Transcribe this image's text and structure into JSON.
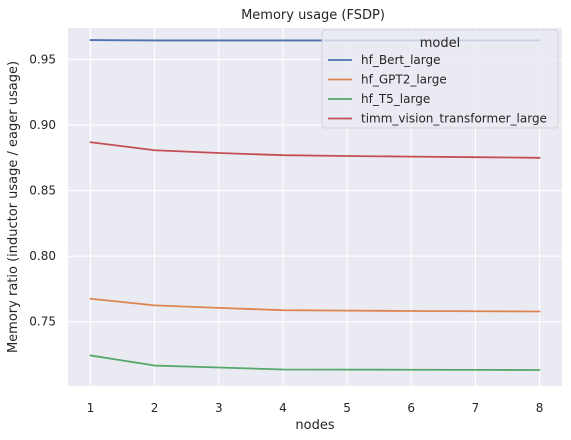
{
  "chart_data": {
    "type": "line",
    "title": "Memory usage (FSDP)",
    "xlabel": "nodes",
    "ylabel": "Memory ratio (inductor usage / eager usage)",
    "x": [
      1,
      2,
      3,
      4,
      5,
      6,
      7,
      8
    ],
    "xticks": [
      "1",
      "2",
      "3",
      "4",
      "5",
      "6",
      "7",
      "8"
    ],
    "yticks": [
      "0.75",
      "0.80",
      "0.85",
      "0.90",
      "0.95"
    ],
    "xlim": [
      0.65,
      8.35
    ],
    "ylim": [
      0.701,
      0.974
    ],
    "grid": true,
    "legend": {
      "title": "model",
      "placement": "top-right"
    },
    "series": [
      {
        "name": "hf_Bert_large",
        "color": "#4c72b0",
        "values": [
          0.9648,
          0.9645,
          0.9645,
          0.9645,
          0.9645,
          0.9645,
          0.9645,
          0.9645
        ]
      },
      {
        "name": "hf_GPT2_large",
        "color": "#dd8452",
        "values": [
          0.7675,
          0.7625,
          0.7606,
          0.7588,
          0.7585,
          0.7582,
          0.758,
          0.7578
        ]
      },
      {
        "name": "hf_T5_large",
        "color": "#55a868",
        "values": [
          0.7243,
          0.7166,
          0.7151,
          0.7136,
          0.7135,
          0.7134,
          0.7133,
          0.7132
        ]
      },
      {
        "name": "timm_vision_transformer_large",
        "color": "#c44e52",
        "values": [
          0.8869,
          0.8808,
          0.8787,
          0.877,
          0.8764,
          0.8759,
          0.8755,
          0.875
        ]
      }
    ]
  }
}
